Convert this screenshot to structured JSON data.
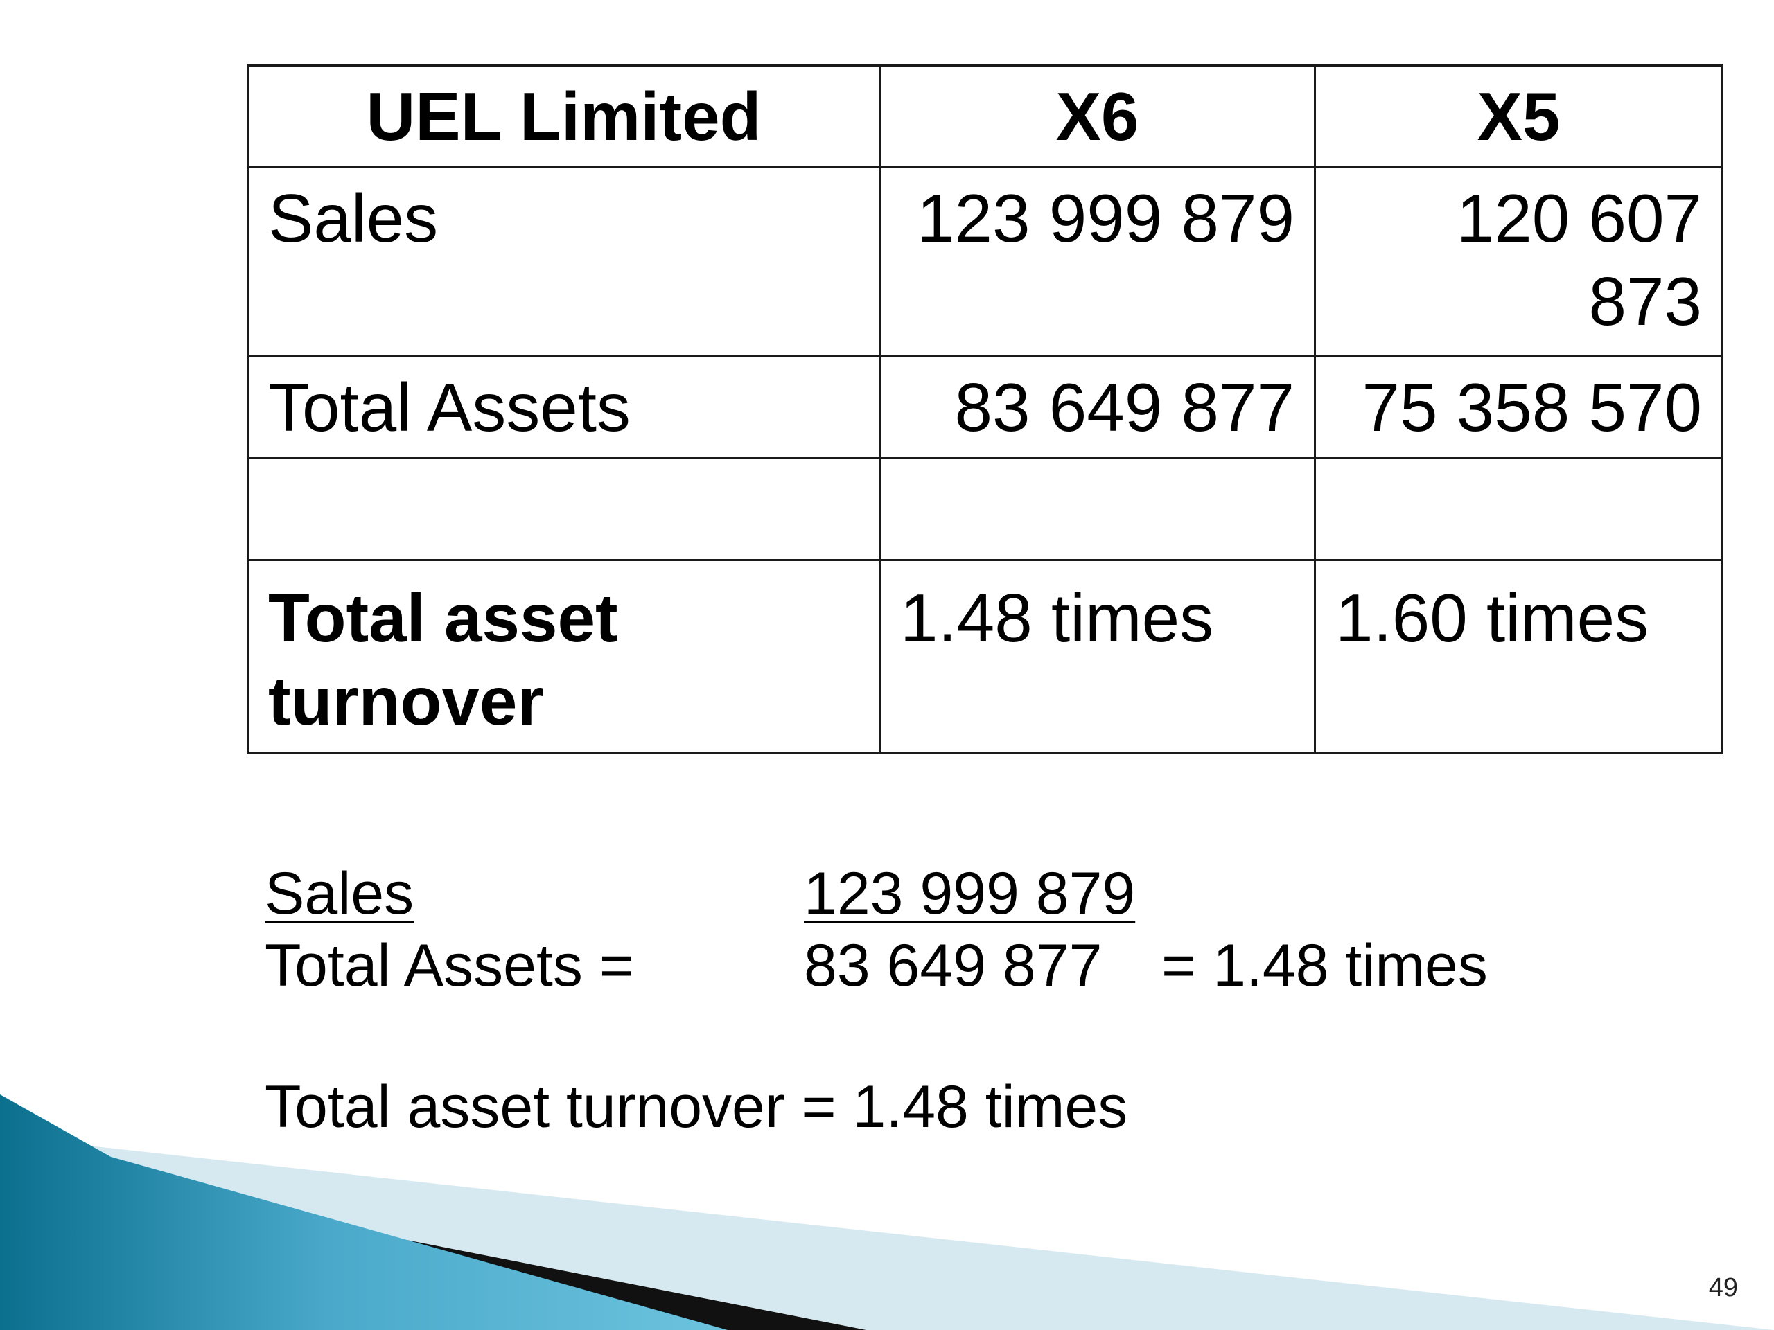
{
  "table": {
    "header": {
      "company": "UEL Limited",
      "col1": "X6",
      "col2": "X5"
    },
    "rows": [
      {
        "label": "Sales",
        "x6": "123 999 879",
        "x5_line1": "120 607",
        "x5_line2": "873"
      },
      {
        "label": "Total Assets",
        "x6": "83 649 877",
        "x5": "75 358 570"
      },
      {
        "label": "",
        "x6": "",
        "x5": ""
      },
      {
        "label_line1": "Total asset",
        "label_line2": "turnover",
        "x6": "1.48 times",
        "x5": "1.60 times"
      }
    ]
  },
  "formula": {
    "numerator_label": "Sales",
    "denominator_label": "Total Assets =",
    "numerator_value": "123 999 879",
    "denominator_value": "83 649 877",
    "result": "= 1.48 times",
    "conclusion": "Total asset turnover = 1.48 times"
  },
  "page_number": "49",
  "colors": {
    "accent_dark": "#0b6f8e",
    "accent_light": "#5bb8d6",
    "pale_band": "#d7e9f0",
    "stripe_black": "#111111"
  }
}
